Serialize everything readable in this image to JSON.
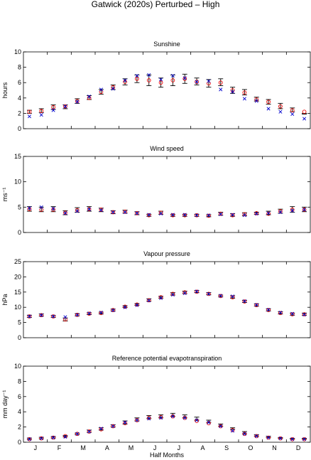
{
  "figure_title": "Gatwick (2020s) Perturbed – High",
  "x_axis": {
    "label": "Half Months",
    "month_labels": [
      "J",
      "F",
      "M",
      "A",
      "M",
      "J",
      "J",
      "A",
      "S",
      "O",
      "N",
      "D"
    ]
  },
  "colors": {
    "observed": "#0000cc",
    "model_mean": "#ee0000",
    "model_range": "#000000"
  },
  "chart_data": [
    {
      "type": "scatter",
      "title": "Sunshine",
      "ylabel": "hours",
      "ylim": [
        0,
        10
      ],
      "yticks": [
        0,
        2,
        4,
        6,
        8,
        10
      ],
      "x": [
        1,
        2,
        3,
        4,
        5,
        6,
        7,
        8,
        9,
        10,
        11,
        12,
        13,
        14,
        15,
        16,
        17,
        18,
        19,
        20,
        21,
        22,
        23,
        24
      ],
      "series": [
        {
          "values": [
            1.6,
            1.8,
            2.4,
            2.9,
            3.5,
            4.2,
            5.1,
            5.2,
            6.3,
            6.9,
            7.0,
            6.4,
            6.9,
            6.6,
            6.1,
            6.2,
            5.1,
            4.8,
            3.9,
            3.6,
            2.6,
            2.2,
            1.9,
            1.3
          ]
        },
        {
          "values": [
            2.2,
            2.3,
            2.8,
            2.9,
            3.6,
            4.0,
            4.8,
            5.4,
            6.1,
            6.5,
            6.3,
            6.0,
            6.3,
            6.5,
            6.1,
            5.9,
            6.0,
            5.0,
            4.7,
            3.8,
            3.5,
            2.9,
            2.4,
            2.2
          ]
        },
        {
          "values": [
            [
              2.0,
              2.4
            ],
            [
              2.1,
              2.6
            ],
            [
              2.5,
              3.1
            ],
            [
              2.6,
              3.1
            ],
            [
              3.3,
              3.9
            ],
            [
              3.8,
              4.3
            ],
            [
              4.5,
              5.1
            ],
            [
              5.1,
              5.7
            ],
            [
              5.7,
              6.5
            ],
            [
              6.0,
              7.0
            ],
            [
              5.6,
              7.0
            ],
            [
              5.4,
              6.6
            ],
            [
              5.6,
              7.0
            ],
            [
              5.9,
              7.1
            ],
            [
              5.7,
              6.6
            ],
            [
              5.4,
              6.4
            ],
            [
              5.6,
              6.5
            ],
            [
              4.6,
              5.4
            ],
            [
              4.4,
              5.1
            ],
            [
              3.6,
              4.1
            ],
            [
              3.2,
              3.8
            ],
            [
              2.6,
              3.3
            ],
            [
              2.2,
              2.7
            ],
            [
              1.9,
              2.0
            ]
          ]
        }
      ]
    },
    {
      "type": "scatter",
      "title": "Wind speed",
      "ylabel": "ms⁻¹",
      "ylim": [
        0,
        15
      ],
      "yticks": [
        0,
        5,
        10,
        15
      ],
      "x": [
        1,
        2,
        3,
        4,
        5,
        6,
        7,
        8,
        9,
        10,
        11,
        12,
        13,
        14,
        15,
        16,
        17,
        18,
        19,
        20,
        21,
        22,
        23,
        24
      ],
      "series": [
        {
          "values": [
            4.8,
            5.0,
            4.7,
            3.8,
            4.2,
            4.6,
            4.4,
            4.0,
            4.0,
            3.8,
            3.5,
            3.7,
            3.5,
            3.5,
            3.4,
            3.4,
            3.6,
            3.5,
            3.4,
            3.7,
            3.8,
            4.0,
            4.3,
            4.5
          ]
        },
        {
          "values": [
            4.6,
            4.5,
            4.5,
            3.9,
            4.4,
            4.6,
            4.5,
            4.0,
            4.1,
            3.8,
            3.4,
            3.9,
            3.4,
            3.4,
            3.4,
            3.3,
            3.7,
            3.4,
            3.6,
            3.8,
            3.7,
            4.2,
            4.5,
            4.5
          ]
        },
        {
          "values": [
            [
              4.2,
              5.1
            ],
            [
              4.1,
              5.0
            ],
            [
              4.1,
              5.1
            ],
            [
              3.5,
              4.3
            ],
            [
              4.0,
              4.9
            ],
            [
              4.2,
              5.1
            ],
            [
              4.1,
              4.8
            ],
            [
              3.7,
              4.3
            ],
            [
              3.8,
              4.4
            ],
            [
              3.5,
              4.1
            ],
            [
              3.2,
              3.6
            ],
            [
              3.6,
              4.2
            ],
            [
              3.2,
              3.6
            ],
            [
              3.2,
              3.6
            ],
            [
              3.2,
              3.6
            ],
            [
              3.1,
              3.5
            ],
            [
              3.4,
              4.0
            ],
            [
              3.2,
              3.7
            ],
            [
              3.3,
              3.9
            ],
            [
              3.6,
              4.0
            ],
            [
              3.5,
              4.2
            ],
            [
              3.8,
              4.6
            ],
            [
              4.0,
              5.1
            ],
            [
              4.1,
              5.0
            ]
          ]
        }
      ]
    },
    {
      "type": "scatter",
      "title": "Vapour pressure",
      "ylabel": "hPa",
      "ylim": [
        0,
        25
      ],
      "yticks": [
        0,
        5,
        10,
        15,
        20,
        25
      ],
      "x": [
        1,
        2,
        3,
        4,
        5,
        6,
        7,
        8,
        9,
        10,
        11,
        12,
        13,
        14,
        15,
        16,
        17,
        18,
        19,
        20,
        21,
        22,
        23,
        24
      ],
      "series": [
        {
          "values": [
            7.0,
            7.4,
            7.0,
            6.8,
            7.5,
            8.0,
            8.3,
            9.0,
            10.0,
            10.7,
            12.2,
            13.0,
            14.1,
            14.6,
            15.2,
            14.4,
            13.8,
            13.6,
            12.0,
            10.8,
            9.2,
            8.3,
            7.9,
            7.6
          ]
        },
        {
          "values": [
            7.0,
            7.4,
            7.0,
            6.0,
            7.5,
            7.9,
            8.1,
            9.1,
            10.2,
            10.9,
            12.3,
            13.3,
            14.4,
            14.9,
            15.1,
            14.4,
            13.7,
            13.3,
            11.9,
            10.7,
            9.1,
            8.1,
            7.7,
            7.7
          ]
        },
        {
          "values": [
            [
              6.7,
              7.4
            ],
            [
              7.1,
              7.8
            ],
            [
              6.7,
              7.3
            ],
            [
              5.5,
              6.5
            ],
            [
              7.2,
              7.9
            ],
            [
              7.6,
              8.2
            ],
            [
              7.8,
              8.4
            ],
            [
              8.8,
              9.4
            ],
            [
              9.9,
              10.5
            ],
            [
              10.6,
              11.2
            ],
            [
              12.0,
              12.8
            ],
            [
              13.0,
              13.6
            ],
            [
              14.0,
              14.8
            ],
            [
              14.5,
              15.3
            ],
            [
              14.8,
              15.5
            ],
            [
              14.1,
              14.8
            ],
            [
              13.4,
              14.0
            ],
            [
              13.0,
              13.8
            ],
            [
              11.6,
              12.3
            ],
            [
              10.4,
              11.1
            ],
            [
              8.8,
              9.5
            ],
            [
              7.8,
              8.5
            ],
            [
              7.4,
              8.1
            ],
            [
              7.4,
              8.1
            ]
          ]
        }
      ]
    },
    {
      "type": "scatter",
      "title": "Reference potential evapotranspiration",
      "ylabel": "mm day⁻¹",
      "ylim": [
        0,
        10
      ],
      "yticks": [
        0,
        2,
        4,
        6,
        8,
        10
      ],
      "x": [
        1,
        2,
        3,
        4,
        5,
        6,
        7,
        8,
        9,
        10,
        11,
        12,
        13,
        14,
        15,
        16,
        17,
        18,
        19,
        20,
        21,
        22,
        23,
        24
      ],
      "series": [
        {
          "values": [
            0.4,
            0.5,
            0.6,
            0.7,
            1.1,
            1.4,
            1.8,
            2.1,
            2.6,
            2.9,
            3.1,
            3.2,
            3.4,
            3.2,
            2.9,
            2.6,
            2.1,
            1.5,
            1.1,
            0.8,
            0.6,
            0.5,
            0.4,
            0.4
          ]
        },
        {
          "values": [
            0.4,
            0.5,
            0.6,
            0.8,
            1.1,
            1.4,
            1.7,
            2.1,
            2.5,
            2.9,
            3.2,
            3.3,
            3.4,
            3.2,
            2.8,
            2.5,
            2.1,
            1.6,
            1.1,
            0.8,
            0.6,
            0.5,
            0.4,
            0.4
          ]
        },
        {
          "values": [
            [
              0.35,
              0.55
            ],
            [
              0.45,
              0.65
            ],
            [
              0.55,
              0.75
            ],
            [
              0.7,
              0.9
            ],
            [
              1.0,
              1.2
            ],
            [
              1.3,
              1.6
            ],
            [
              1.6,
              1.9
            ],
            [
              2.0,
              2.3
            ],
            [
              2.4,
              2.8
            ],
            [
              2.8,
              3.2
            ],
            [
              3.1,
              3.5
            ],
            [
              3.2,
              3.6
            ],
            [
              3.4,
              3.8
            ],
            [
              3.2,
              3.6
            ],
            [
              2.9,
              3.3
            ],
            [
              2.6,
              2.9
            ],
            [
              2.1,
              2.4
            ],
            [
              1.7,
              1.9
            ],
            [
              1.1,
              1.4
            ],
            [
              0.8,
              1.0
            ],
            [
              0.6,
              0.8
            ],
            [
              0.5,
              0.6
            ],
            [
              0.4,
              0.5
            ],
            [
              0.4,
              0.5
            ]
          ]
        }
      ]
    }
  ]
}
